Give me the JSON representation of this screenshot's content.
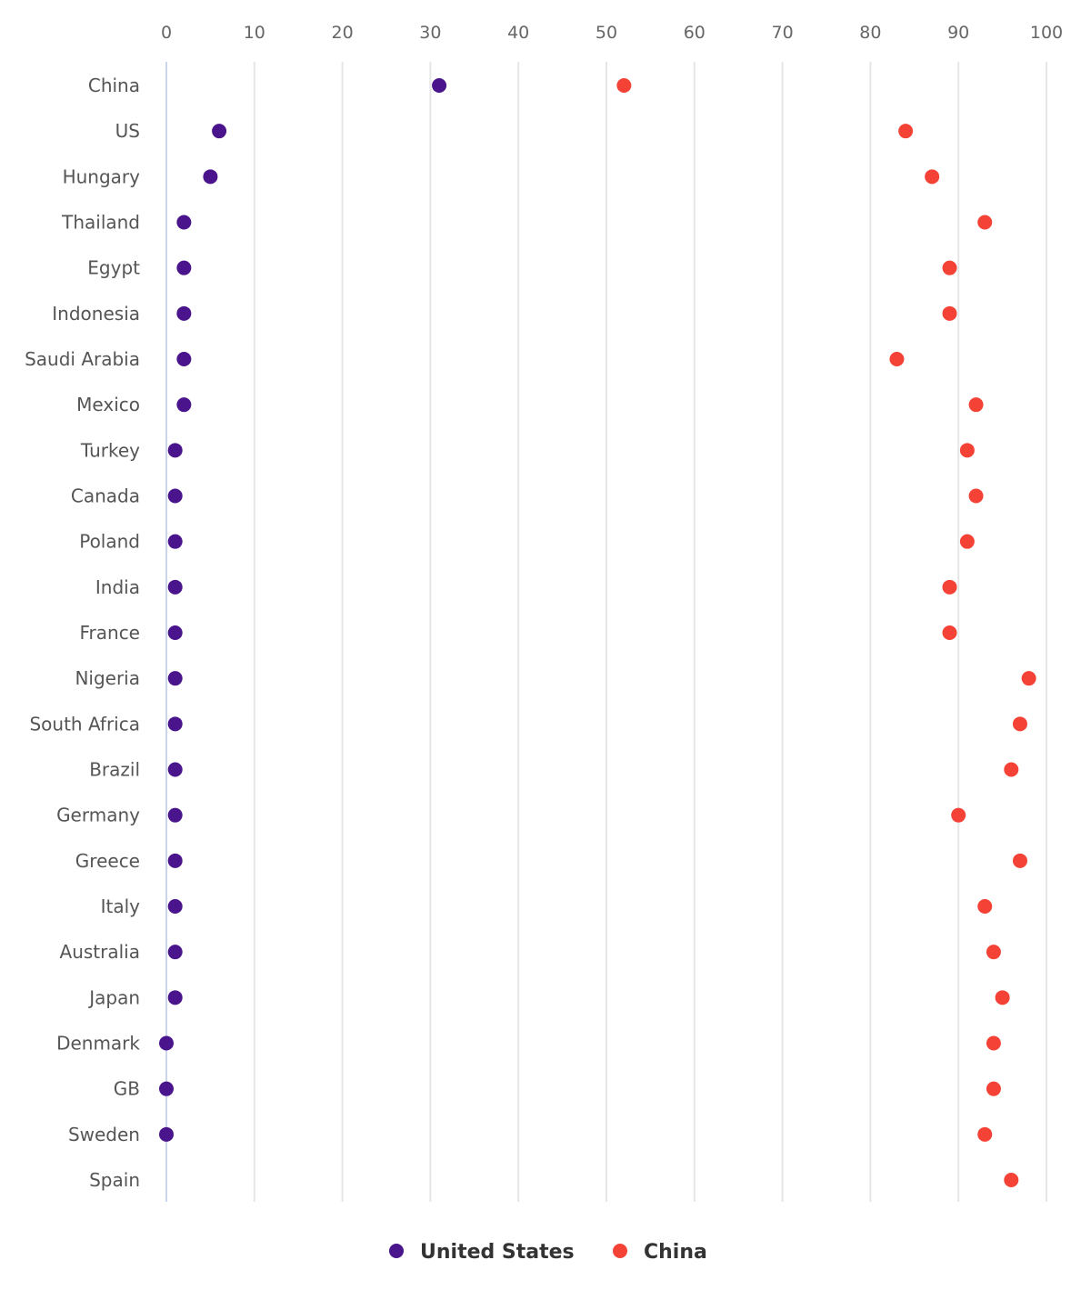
{
  "chart_data": {
    "type": "scatter",
    "orientation": "horizontal-dot-plot",
    "title": "",
    "xlabel": "",
    "ylabel": "",
    "xlim": [
      0,
      100
    ],
    "x_ticks": [
      "0",
      "10",
      "20",
      "30",
      "40",
      "50",
      "60",
      "70",
      "80",
      "90",
      "100"
    ],
    "x_axis_position": "top",
    "grid": true,
    "legend_position": "bottom",
    "categories": [
      "China",
      "US",
      "Hungary",
      "Thailand",
      "Egypt",
      "Indonesia",
      "Saudi Arabia",
      "Mexico",
      "Turkey",
      "Canada",
      "Poland",
      "India",
      "France",
      "Nigeria",
      "South Africa",
      "Brazil",
      "Germany",
      "Greece",
      "Italy",
      "Australia",
      "Japan",
      "Denmark",
      "GB",
      "Sweden",
      "Spain"
    ],
    "series": [
      {
        "name": "United States",
        "color": "#4a148c",
        "values": [
          31,
          6,
          5,
          2,
          2,
          2,
          2,
          2,
          1,
          1,
          1,
          1,
          1,
          1,
          1,
          1,
          1,
          1,
          1,
          1,
          1,
          0,
          0,
          0,
          null
        ]
      },
      {
        "name": "China",
        "color": "#f44336",
        "values": [
          52,
          84,
          87,
          93,
          89,
          89,
          83,
          92,
          91,
          92,
          91,
          89,
          89,
          98,
          97,
          96,
          90,
          97,
          93,
          94,
          95,
          94,
          94,
          93,
          96
        ]
      }
    ]
  }
}
